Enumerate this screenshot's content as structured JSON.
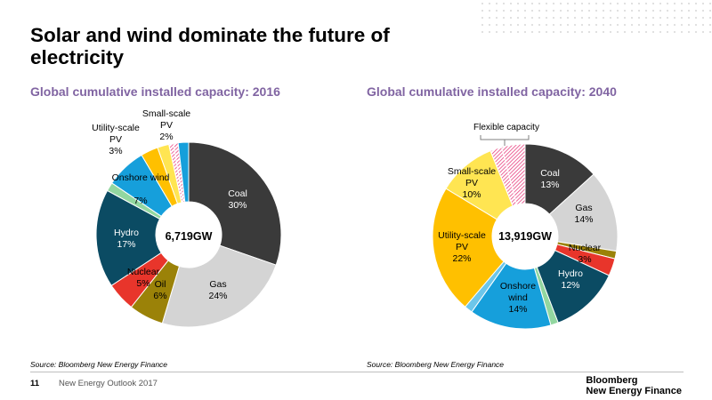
{
  "slide": {
    "title": "Solar and wind dominate the future of electricity",
    "page_number": "11",
    "footer": "New Energy Outlook 2017",
    "logo_line1": "Bloomberg",
    "logo_line2": "New Energy Finance"
  },
  "chart_data": [
    {
      "type": "pie",
      "title": "Global cumulative installed capacity: 2016",
      "center_label": "6,719GW",
      "source": "Source: Bloomberg New Energy Finance",
      "slices": [
        {
          "name": "Coal",
          "value": 30,
          "label": "30%",
          "color": "#3a3a3a"
        },
        {
          "name": "Gas",
          "value": 24,
          "label": "24%",
          "color": "#d4d4d4"
        },
        {
          "name": "Oil",
          "value": 6,
          "label": "6%",
          "color": "#9b8208"
        },
        {
          "name": "Nuclear",
          "value": 5,
          "label": "5%",
          "color": "#e8352b"
        },
        {
          "name": "Hydro",
          "value": 17,
          "label": "17%",
          "color": "#0b4b63"
        },
        {
          "name": "",
          "value": 1.5,
          "label": "",
          "color": "#92d7a0"
        },
        {
          "name": "Onshore wind",
          "value": 7,
          "label": "7%",
          "color": "#169fdb"
        },
        {
          "name": "Utility-scale PV",
          "value": 3,
          "label": "3%",
          "color": "#ffc000"
        },
        {
          "name": "Small-scale PV",
          "value": 2,
          "label": "2%",
          "color": "#ffe552"
        },
        {
          "name": "",
          "value": 0.8,
          "label": "",
          "color": "#ff3399",
          "pattern": true
        },
        {
          "name": "",
          "value": 0.8,
          "label": "",
          "color": "#ff66b3",
          "pattern": true
        },
        {
          "name": "",
          "value": 1.8,
          "label": "",
          "color": "#169fdb"
        }
      ]
    },
    {
      "type": "pie",
      "title": "Global cumulative installed capacity: 2040",
      "center_label": "13,919GW",
      "source": "Source: Bloomberg New Energy Finance",
      "annotation": "Flexible capacity",
      "slices": [
        {
          "name": "Coal",
          "value": 13,
          "label": "13%",
          "color": "#3a3a3a"
        },
        {
          "name": "Gas",
          "value": 14,
          "label": "14%",
          "color": "#d4d4d4"
        },
        {
          "name": "",
          "value": 1.3,
          "label": "",
          "color": "#9b8208"
        },
        {
          "name": "Nuclear",
          "value": 3,
          "label": "3%",
          "color": "#e8352b"
        },
        {
          "name": "Hydro",
          "value": 12,
          "label": "12%",
          "color": "#0b4b63"
        },
        {
          "name": "",
          "value": 1.3,
          "label": "",
          "color": "#92d7a0"
        },
        {
          "name": "Onshore wind",
          "value": 14,
          "label": "14%",
          "color": "#169fdb"
        },
        {
          "name": "",
          "value": 1.4,
          "label": "",
          "color": "#6cc6ea"
        },
        {
          "name": "Utility-scale PV",
          "value": 22,
          "label": "22%",
          "color": "#ffc000"
        },
        {
          "name": "Small-scale PV",
          "value": 10,
          "label": "10%",
          "color": "#ffe552"
        },
        {
          "name": "",
          "value": 2,
          "label": "",
          "color": "#e8407f",
          "pattern": true
        },
        {
          "name": "",
          "value": 4,
          "label": "",
          "color": "#ff4fa8",
          "pattern": true
        }
      ]
    }
  ]
}
